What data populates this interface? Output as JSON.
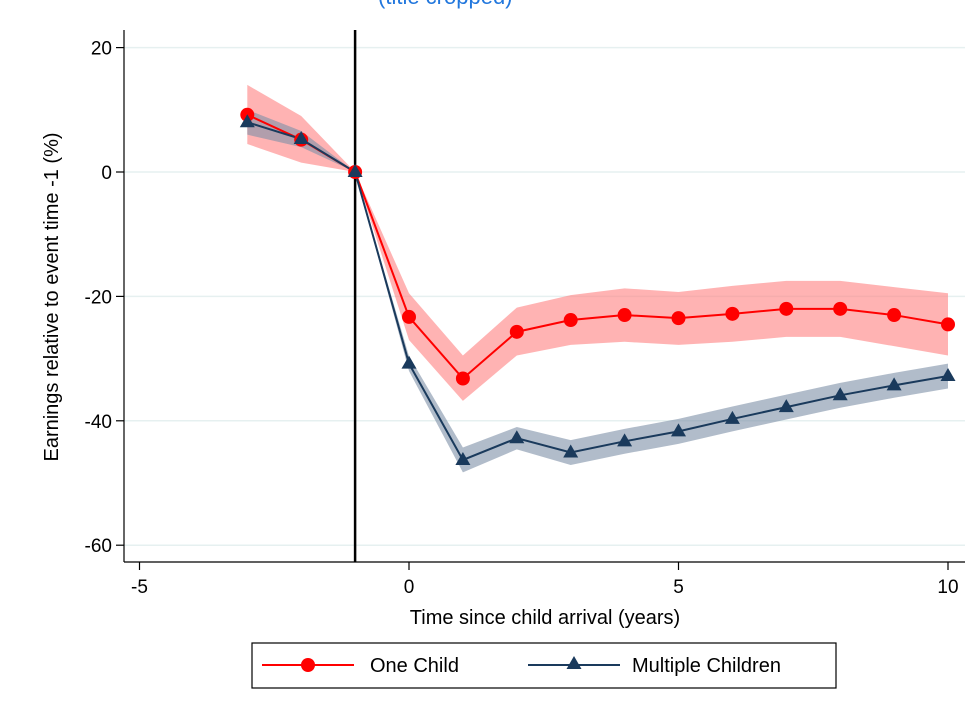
{
  "colors": {
    "one_child": "#ff0000",
    "one_child_band": "#ff8080",
    "multiple_children": "#1a3a5c",
    "multiple_children_band": "#7d8fa6",
    "grid": "#e6f0f0",
    "title": "#2277dd"
  },
  "chart_data": {
    "type": "line",
    "title": "",
    "xlabel": "Time since child arrival (years)",
    "ylabel": "Earnings relative to event time -1 (%)",
    "xlim": [
      -5.5,
      10.3
    ],
    "ylim": [
      -62,
      22
    ],
    "xticks": [
      -5,
      0,
      5,
      10
    ],
    "yticks": [
      20,
      0,
      -20,
      -40,
      -60
    ],
    "grid": true,
    "event_line_x": -1,
    "legend_position": "bottom",
    "x": [
      -3,
      -2,
      -1,
      0,
      1,
      2,
      3,
      4,
      5,
      6,
      7,
      8,
      9,
      10
    ],
    "series": [
      {
        "name": "One Child",
        "marker": "circle",
        "values": [
          9.2,
          5.2,
          0,
          -23.3,
          -33.2,
          -25.7,
          -23.8,
          -23.0,
          -23.5,
          -22.8,
          -22.0,
          -22.0,
          -23.0,
          -24.5
        ],
        "ci_lower": [
          4.5,
          1.5,
          0,
          -27.0,
          -36.8,
          -29.5,
          -27.8,
          -27.3,
          -27.8,
          -27.3,
          -26.5,
          -26.5,
          -28.0,
          -29.5
        ],
        "ci_upper": [
          14.0,
          9.0,
          0,
          -19.5,
          -29.5,
          -21.8,
          -19.8,
          -18.7,
          -19.3,
          -18.3,
          -17.5,
          -17.5,
          -18.5,
          -19.5
        ]
      },
      {
        "name": "Multiple Children",
        "marker": "triangle",
        "values": [
          8.0,
          5.3,
          0,
          -30.8,
          -46.3,
          -42.8,
          -45.1,
          -43.3,
          -41.7,
          -39.7,
          -37.8,
          -35.9,
          -34.3,
          -32.8
        ],
        "ci_lower": [
          6.0,
          4.0,
          0,
          -32.0,
          -48.3,
          -44.6,
          -47.1,
          -45.3,
          -43.7,
          -41.7,
          -39.8,
          -37.9,
          -36.3,
          -34.8
        ],
        "ci_upper": [
          10.0,
          6.6,
          0,
          -29.6,
          -44.3,
          -41.0,
          -43.1,
          -41.3,
          -39.7,
          -37.7,
          -35.8,
          -33.9,
          -32.3,
          -30.8
        ]
      }
    ]
  }
}
